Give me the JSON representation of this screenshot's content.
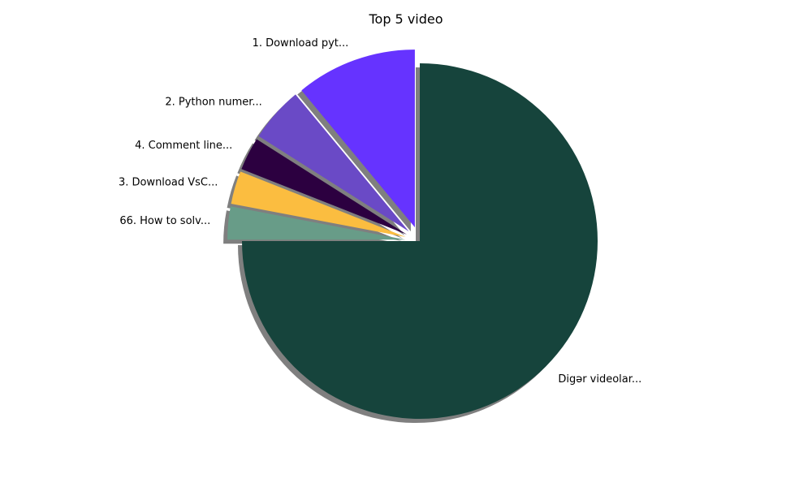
{
  "chart_data": {
    "type": "pie",
    "title": "Top 5 video",
    "labels": [
      "Digər videolar...",
      "1. Download pyt...",
      "2. Python numer...",
      "4. Comment line...",
      "3. Download VsC...",
      "66. How to solv..."
    ],
    "values": [
      75,
      11,
      5,
      3,
      3,
      3
    ],
    "colors": [
      "#16443c",
      "#6633ff",
      "#6a4ac6",
      "#2c0040",
      "#fbbd40",
      "#689c88"
    ],
    "exploded": [
      false,
      true,
      true,
      true,
      true,
      true
    ],
    "shadow": true,
    "start_angle_deg": 180,
    "direction": "counterclockwise"
  }
}
